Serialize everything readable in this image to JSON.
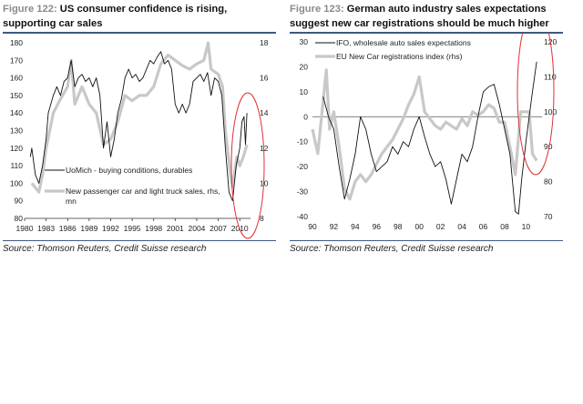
{
  "figures": [
    {
      "number": "Figure 122:",
      "title": "US consumer confidence is rising, supporting car sales",
      "source": "Source: Thomson Reuters, Credit Suisse research"
    },
    {
      "number": "Figure 123:",
      "title": "German auto industry sales expectations suggest new car registrations should be much higher",
      "source": "Source: Thomson Reuters, Credit Suisse research"
    }
  ],
  "chart_data": [
    {
      "type": "line",
      "title": "US consumer confidence is rising, supporting car sales",
      "ylim": [
        80,
        180
      ],
      "yticks": [
        80,
        90,
        100,
        110,
        120,
        130,
        140,
        150,
        160,
        170,
        180
      ],
      "y2lim": [
        8,
        18
      ],
      "y2ticks": [
        8,
        10,
        12,
        14,
        16,
        18
      ],
      "xlim": [
        1980,
        2011.5
      ],
      "xticks": [
        1980,
        1983,
        1986,
        1989,
        1992,
        1995,
        1998,
        2001,
        2004,
        2007,
        2010
      ],
      "series": [
        {
          "name": "UoMich - buying conditions, durables",
          "axis": "left",
          "color": "#111111",
          "x": [
            1980.8,
            1981,
            1981.5,
            1982,
            1982.5,
            1983,
            1983.3,
            1984,
            1984.5,
            1985,
            1985.5,
            1986,
            1986.5,
            1987,
            1987.5,
            1988,
            1988.5,
            1989,
            1989.5,
            1990,
            1990.5,
            1991,
            1991.5,
            1992,
            1992.5,
            1993,
            1993.5,
            1994,
            1994.5,
            1995,
            1995.5,
            1996,
            1996.5,
            1997,
            1997.5,
            1998,
            1998.5,
            1999,
            1999.5,
            2000,
            2000.5,
            2001,
            2001.5,
            2002,
            2002.5,
            2003,
            2003.5,
            2004,
            2004.5,
            2005,
            2005.5,
            2006,
            2006.5,
            2007,
            2007.5,
            2008,
            2008.5,
            2009,
            2009.5,
            2010,
            2010.3,
            2010.6,
            2010.8,
            2011
          ],
          "y": [
            115,
            120,
            105,
            100,
            110,
            125,
            140,
            150,
            155,
            150,
            158,
            160,
            170,
            155,
            160,
            162,
            158,
            160,
            155,
            160,
            150,
            120,
            135,
            115,
            125,
            140,
            148,
            160,
            165,
            160,
            162,
            158,
            160,
            165,
            170,
            168,
            172,
            175,
            168,
            170,
            165,
            145,
            140,
            145,
            140,
            145,
            158,
            160,
            162,
            158,
            163,
            150,
            160,
            158,
            150,
            120,
            95,
            90,
            110,
            120,
            135,
            138,
            122,
            140
          ]
        },
        {
          "name": "New passenger car and light truck sales, rhs, mn",
          "axis": "right",
          "color": "#c8c8c8",
          "x": [
            1981,
            1982,
            1982.5,
            1983,
            1984,
            1985,
            1986,
            1986.5,
            1987,
            1988,
            1989,
            1990,
            1991,
            1992,
            1993,
            1994,
            1995,
            1996,
            1997,
            1998,
            1999,
            2000,
            2001,
            2002,
            2003,
            2004,
            2005,
            2005.6,
            2006,
            2007,
            2007.6,
            2008,
            2008.7,
            2009,
            2009.6,
            2010,
            2010.5,
            2011
          ],
          "y": [
            10,
            9.5,
            10.5,
            12,
            14,
            14.8,
            15.5,
            17,
            14.5,
            15.5,
            14.5,
            14,
            12.2,
            12.5,
            13.5,
            15,
            14.7,
            15,
            15,
            15.5,
            16.8,
            17.3,
            17,
            16.7,
            16.5,
            16.8,
            17,
            18,
            16.5,
            16.2,
            15.5,
            13,
            10.5,
            9.8,
            11.5,
            11,
            11.5,
            12.2
          ]
        }
      ]
    },
    {
      "type": "line",
      "title": "German auto industry sales expectations suggest new car registrations should be much higher",
      "ylim": [
        -40,
        30
      ],
      "yticks": [
        -40,
        -30,
        -20,
        -10,
        0,
        10,
        20,
        30
      ],
      "y2lim": [
        70,
        120
      ],
      "y2ticks": [
        70,
        80,
        90,
        100,
        110,
        120
      ],
      "xlim": [
        1990,
        2011.5
      ],
      "xticks": [
        "90",
        "92",
        "94",
        "96",
        "98",
        "00",
        "02",
        "04",
        "06",
        "08",
        "10"
      ],
      "series": [
        {
          "name": "IFO, wholesale auto sales expectations",
          "axis": "left",
          "color": "#111111",
          "x": [
            1991,
            1991.5,
            1992,
            1992.5,
            1993,
            1993.5,
            1994,
            1994.5,
            1995,
            1995.5,
            1996,
            1996.5,
            1997,
            1997.5,
            1998,
            1998.5,
            1999,
            1999.5,
            2000,
            2000.5,
            2001,
            2001.5,
            2002,
            2002.5,
            2003,
            2003.5,
            2004,
            2004.5,
            2005,
            2005.5,
            2006,
            2006.5,
            2007,
            2007.5,
            2008,
            2008.5,
            2009,
            2009.3,
            2009.6,
            2010,
            2010.3,
            2010.6,
            2011
          ],
          "y": [
            8,
            0,
            -5,
            -20,
            -33,
            -25,
            -15,
            0,
            -5,
            -15,
            -22,
            -20,
            -18,
            -12,
            -15,
            -10,
            -12,
            -5,
            0,
            -8,
            -15,
            -20,
            -18,
            -25,
            -35,
            -25,
            -15,
            -18,
            -12,
            0,
            10,
            12,
            13,
            5,
            -5,
            -15,
            -38,
            -39,
            -25,
            -10,
            0,
            10,
            22
          ]
        },
        {
          "name": "EU New Car registrations index (rhs)",
          "axis": "right",
          "color": "#c8c8c8",
          "x": [
            1990,
            1990.5,
            1991,
            1991.3,
            1991.6,
            1992,
            1992.5,
            1993,
            1993.5,
            1994,
            1994.5,
            1995,
            1995.5,
            1996,
            1996.5,
            1997,
            1997.5,
            1998,
            1998.5,
            1999,
            1999.5,
            2000,
            2000.5,
            2001,
            2001.5,
            2002,
            2002.5,
            2003,
            2003.5,
            2004,
            2004.5,
            2005,
            2005.5,
            2006,
            2006.5,
            2007,
            2007.5,
            2008,
            2008.5,
            2009,
            2009.5,
            2010,
            2010.3,
            2010.6,
            2011
          ],
          "y": [
            95,
            88,
            103,
            112,
            95,
            100,
            90,
            78,
            75,
            80,
            82,
            80,
            82,
            85,
            88,
            90,
            92,
            95,
            98,
            102,
            105,
            110,
            100,
            98,
            96,
            95,
            97,
            96,
            95,
            98,
            96,
            100,
            99,
            100,
            102,
            101,
            97,
            97,
            90,
            82,
            100,
            100,
            100,
            88,
            86
          ]
        }
      ]
    }
  ]
}
